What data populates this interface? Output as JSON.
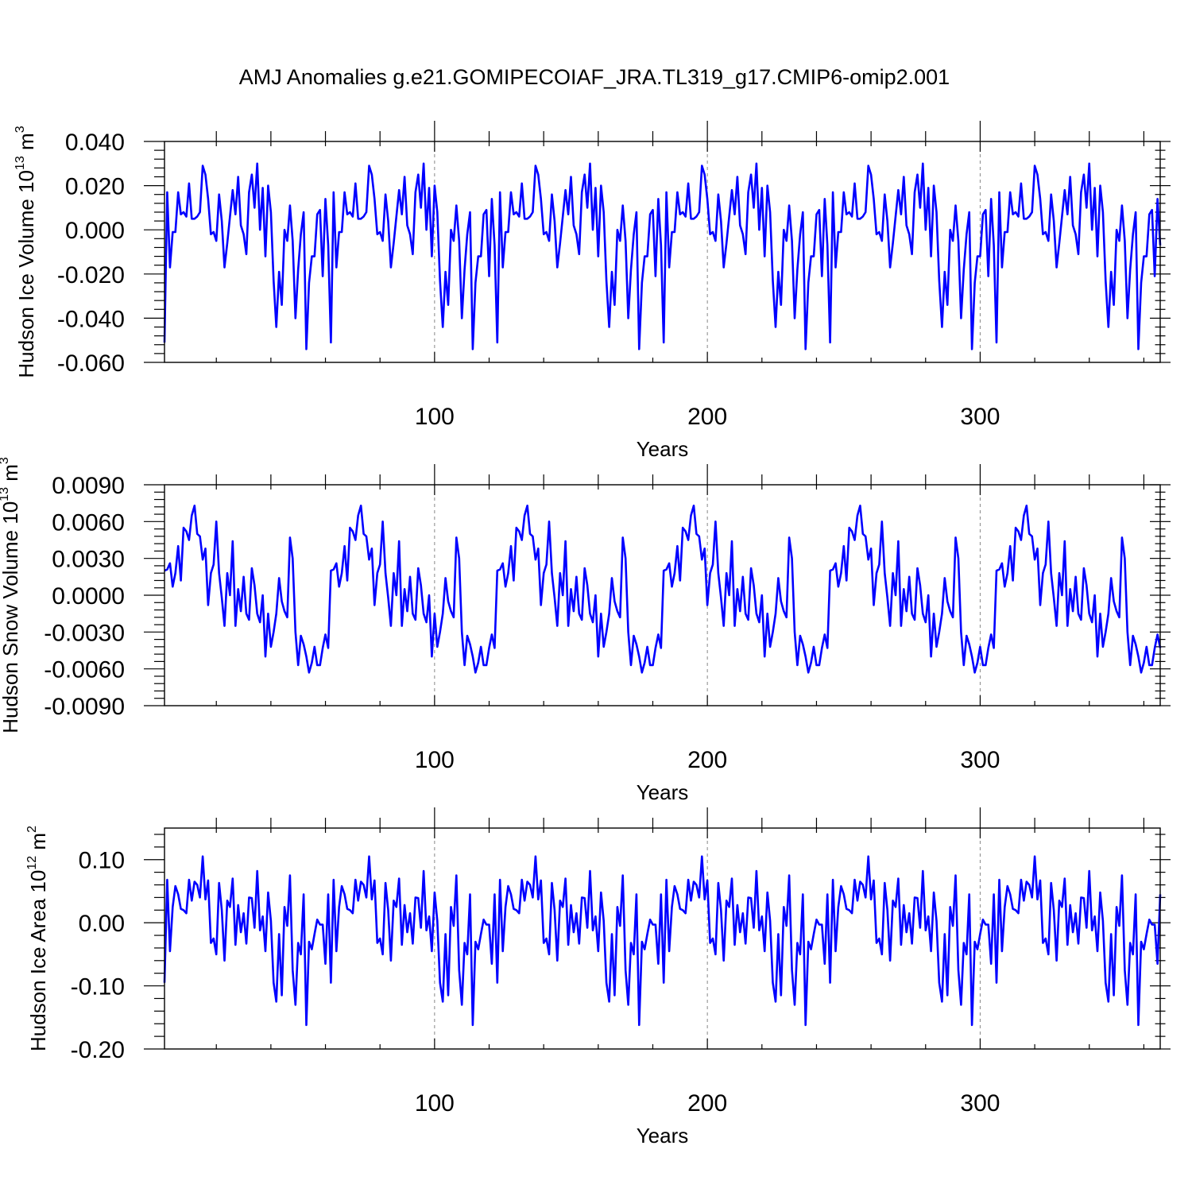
{
  "title": "AMJ Anomalies g.e21.GOMIPECOIAF_JRA.TL319_g17.CMIP6-omip2.001",
  "line_color": "#0000ff",
  "chart_data": [
    {
      "type": "line",
      "title": "AMJ Anomalies g.e21.GOMIPECOIAF_JRA.TL319_g17.CMIP6-omip2.001",
      "xlabel": "Years",
      "ylabel_main": "Hudson Ice Volume 10",
      "ylabel_exp": "13",
      "ylabel_unit": " m",
      "ylabel_unit_exp": "3",
      "xlim": [
        1,
        366
      ],
      "ylim": [
        -0.06,
        0.04
      ],
      "yticks": [
        -0.06,
        -0.04,
        -0.02,
        0.0,
        0.02,
        0.04
      ],
      "yticklabels": [
        "-0.060",
        "-0.040",
        "-0.020",
        "0.000",
        "0.020",
        "0.040"
      ],
      "xticks": [
        100,
        200,
        300
      ],
      "xticklabels": [
        "100",
        "200",
        "300"
      ],
      "grid_x": [
        100,
        200,
        300
      ],
      "period": 61,
      "series": [
        {
          "name": "Hudson Ice Volume",
          "cycle": [
            -0.051,
            0.017,
            -0.017,
            -0.001,
            -0.001,
            0.017,
            0.007,
            0.008,
            0.006,
            0.021,
            0.005,
            0.005,
            0.006,
            0.008,
            0.029,
            0.025,
            0.014,
            -0.002,
            -0.001,
            -0.005,
            0.016,
            0.004,
            -0.017,
            -0.006,
            0.006,
            0.018,
            0.007,
            0.024,
            0.002,
            -0.002,
            -0.011,
            0.017,
            0.025,
            0.01,
            0.03,
            0.0,
            0.019,
            -0.012,
            0.02,
            0.008,
            -0.023,
            -0.044,
            -0.019,
            -0.034,
            0.0,
            -0.005,
            0.011,
            -0.005,
            -0.04,
            -0.018,
            -0.002,
            0.008,
            -0.054,
            -0.024,
            -0.012,
            -0.012,
            0.007,
            0.009,
            -0.021,
            0.014,
            -0.007
          ]
        }
      ]
    },
    {
      "type": "line",
      "xlabel": "Years",
      "ylabel_main": "Hudson Snow Volume 10",
      "ylabel_exp": "13",
      "ylabel_unit": " m",
      "ylabel_unit_exp": "3",
      "xlim": [
        1,
        366
      ],
      "ylim": [
        -0.009,
        0.009
      ],
      "yticks": [
        -0.009,
        -0.006,
        -0.003,
        0.0,
        0.003,
        0.006,
        0.009
      ],
      "yticklabels": [
        "-0.0090",
        "-0.0060",
        "-0.0030",
        "0.0000",
        "0.0030",
        "0.0060",
        "0.0090"
      ],
      "xticks": [
        100,
        200,
        300
      ],
      "xticklabels": [
        "100",
        "200",
        "300"
      ],
      "grid_x": [
        100,
        200,
        300
      ],
      "period": 61,
      "series": [
        {
          "name": "Hudson Snow Volume",
          "cycle": [
            0.002,
            0.0021,
            0.0026,
            0.0007,
            0.0018,
            0.004,
            0.0012,
            0.0055,
            0.0052,
            0.0045,
            0.0065,
            0.0073,
            0.005,
            0.0048,
            0.0029,
            0.0038,
            -0.0008,
            0.0018,
            0.0025,
            0.006,
            0.0018,
            -0.0002,
            -0.0025,
            0.0018,
            0.0,
            0.0044,
            -0.0025,
            0.0005,
            -0.0013,
            0.0015,
            -0.0015,
            -0.002,
            0.0022,
            0.0008,
            -0.0015,
            -0.0022,
            0.0,
            -0.005,
            -0.0015,
            -0.0042,
            -0.003,
            -0.0015,
            0.0014,
            -0.0005,
            -0.0013,
            -0.0018,
            0.0047,
            0.003,
            -0.003,
            -0.0057,
            -0.0033,
            -0.004,
            -0.005,
            -0.0063,
            -0.0055,
            -0.0042,
            -0.0057,
            -0.0057,
            -0.0043,
            -0.0032,
            -0.0043
          ]
        }
      ]
    },
    {
      "type": "line",
      "xlabel": "Years",
      "ylabel_main": "Hudson Ice Area 10",
      "ylabel_exp": "12",
      "ylabel_unit": " m",
      "ylabel_unit_exp": "2",
      "xlim": [
        1,
        366
      ],
      "ylim": [
        -0.2,
        0.15
      ],
      "yticks": [
        -0.2,
        -0.1,
        0.0,
        0.1
      ],
      "yticklabels": [
        "-0.20",
        "-0.10",
        "0.00",
        "0.10"
      ],
      "xticks": [
        100,
        200,
        300
      ],
      "xticklabels": [
        "100",
        "200",
        "300"
      ],
      "grid_x": [
        100,
        200,
        300
      ],
      "period": 61,
      "series": [
        {
          "name": "Hudson Ice Area",
          "cycle": [
            -0.095,
            0.068,
            -0.045,
            0.025,
            0.058,
            0.045,
            0.022,
            0.02,
            0.015,
            0.068,
            0.035,
            0.065,
            0.06,
            0.04,
            0.105,
            0.037,
            0.067,
            -0.032,
            -0.025,
            -0.05,
            0.063,
            0.02,
            -0.06,
            0.035,
            0.025,
            0.07,
            -0.035,
            0.028,
            -0.015,
            0.015,
            -0.033,
            0.04,
            0.039,
            -0.008,
            0.082,
            -0.012,
            0.01,
            -0.045,
            0.048,
            0.003,
            -0.095,
            -0.125,
            -0.018,
            -0.115,
            0.025,
            -0.005,
            0.075,
            -0.075,
            -0.13,
            -0.032,
            -0.05,
            0.045,
            -0.162,
            -0.03,
            -0.042,
            -0.018,
            0.005,
            -0.003,
            -0.003,
            -0.065,
            0.045
          ]
        }
      ]
    }
  ]
}
